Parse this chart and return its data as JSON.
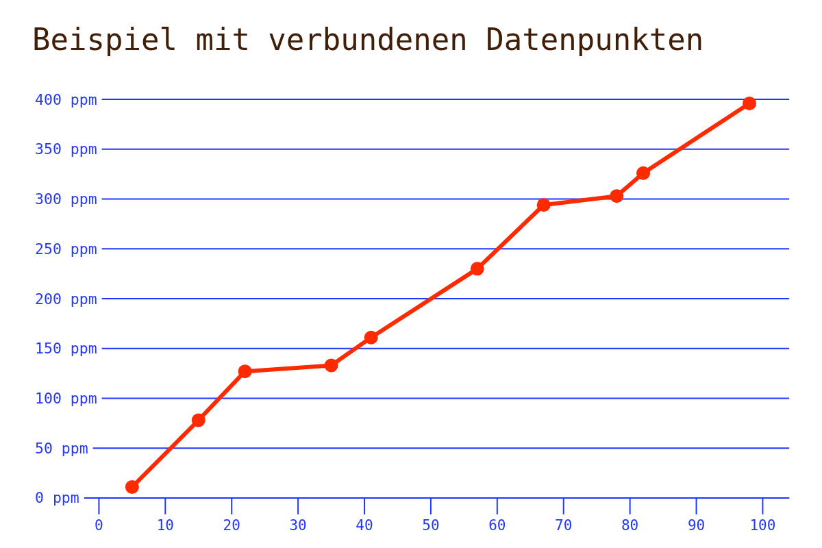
{
  "chart_data": {
    "type": "line",
    "title": "Beispiel mit verbundenen Datenpunkten",
    "x": [
      5,
      15,
      22,
      35,
      41,
      57,
      67,
      78,
      82,
      98
    ],
    "values": [
      11,
      78,
      127,
      133,
      161,
      230,
      294,
      303,
      326,
      396
    ],
    "color": "#ff2a00",
    "marker": "circle",
    "line_style": "solid",
    "xlim": [
      -10,
      104
    ],
    "xticks": [
      0,
      10,
      20,
      30,
      40,
      50,
      60,
      70,
      80,
      90,
      100
    ],
    "ylim": [
      0,
      400
    ],
    "yticks": [
      {
        "value": 0,
        "label": "0 ppm"
      },
      {
        "value": 50,
        "label": "50 ppm"
      },
      {
        "value": 100,
        "label": "100 ppm"
      },
      {
        "value": 150,
        "label": "150 ppm"
      },
      {
        "value": 200,
        "label": "200 ppm"
      },
      {
        "value": 250,
        "label": "250 ppm"
      },
      {
        "value": 300,
        "label": "300 ppm"
      },
      {
        "value": 350,
        "label": "350 ppm"
      },
      {
        "value": 400,
        "label": "400 ppm"
      }
    ],
    "grid": "y"
  }
}
